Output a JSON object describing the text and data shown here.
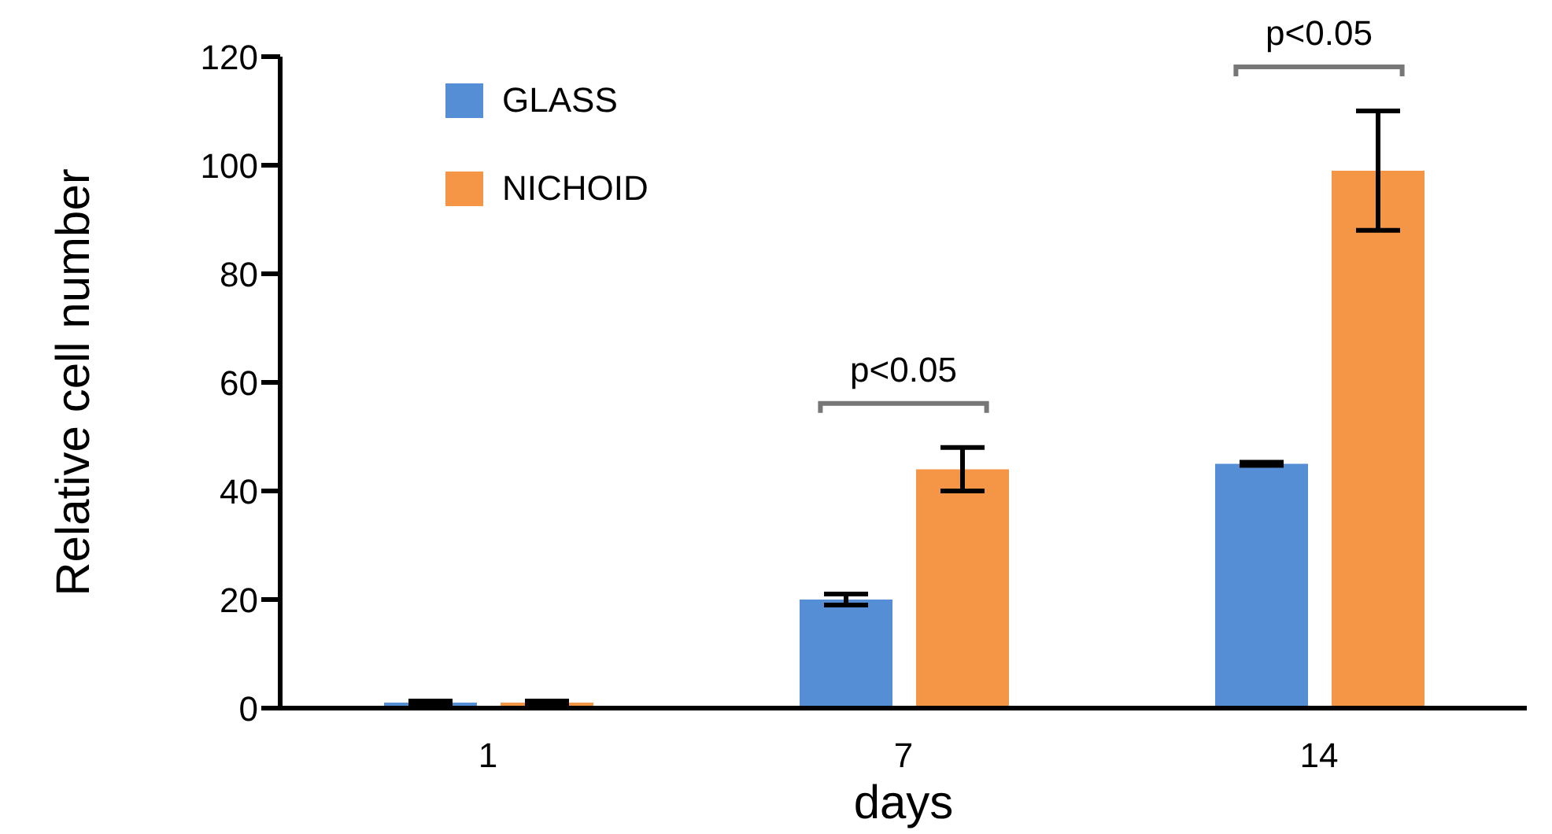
{
  "chart_data": {
    "type": "bar",
    "xlabel": "days",
    "ylabel": "Relative cell number",
    "categories": [
      "1",
      "7",
      "14"
    ],
    "series": [
      {
        "name": "GLASS",
        "color": "#558ed5",
        "values": [
          1,
          20,
          45
        ],
        "errors": [
          0.3,
          1,
          0.3
        ]
      },
      {
        "name": "NICHOID",
        "color": "#f59647",
        "values": [
          1,
          44,
          99
        ],
        "errors": [
          0.3,
          4,
          11
        ]
      }
    ],
    "ylim": [
      0,
      120
    ],
    "yticks": [
      0,
      20,
      40,
      60,
      80,
      100,
      120
    ],
    "grid": false,
    "legend": "top left",
    "annotations": [
      "p<0.05",
      "p<0.05"
    ]
  }
}
